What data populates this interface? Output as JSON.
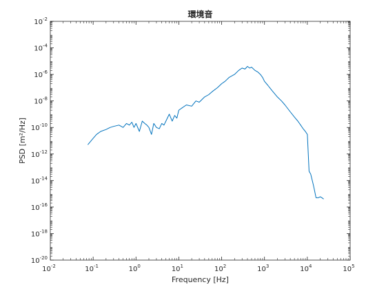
{
  "chart_data": {
    "type": "line",
    "title": "環境音",
    "xlabel": "Frequency [Hz]",
    "ylabel": "PSD [m²/Hz]",
    "x_scale": "log",
    "y_scale": "log",
    "xlim": [
      0.01,
      100000
    ],
    "ylim": [
      1e-20,
      0.01
    ],
    "grid": false,
    "x_ticks": [
      {
        "value": 0.01,
        "base": "10",
        "exp": "-2"
      },
      {
        "value": 0.1,
        "base": "10",
        "exp": "-1"
      },
      {
        "value": 1,
        "base": "10",
        "exp": "0"
      },
      {
        "value": 10,
        "base": "10",
        "exp": "1"
      },
      {
        "value": 100,
        "base": "10",
        "exp": "2"
      },
      {
        "value": 1000,
        "base": "10",
        "exp": "3"
      },
      {
        "value": 10000,
        "base": "10",
        "exp": "4"
      },
      {
        "value": 100000,
        "base": "10",
        "exp": "5"
      }
    ],
    "y_ticks": [
      {
        "value": 1e-20,
        "base": "10",
        "exp": "-20"
      },
      {
        "value": 1e-18,
        "base": "10",
        "exp": "-18"
      },
      {
        "value": 1e-16,
        "base": "10",
        "exp": "-16"
      },
      {
        "value": 1e-14,
        "base": "10",
        "exp": "-14"
      },
      {
        "value": 1e-12,
        "base": "10",
        "exp": "-12"
      },
      {
        "value": 1e-10,
        "base": "10",
        "exp": "-10"
      },
      {
        "value": 1e-08,
        "base": "10",
        "exp": "-8"
      },
      {
        "value": 1e-06,
        "base": "10",
        "exp": "-6"
      },
      {
        "value": 0.0001,
        "base": "10",
        "exp": "-4"
      },
      {
        "value": 0.01,
        "base": "10",
        "exp": "-2"
      }
    ],
    "series": [
      {
        "color": "#0072BD",
        "x": [
          0.075,
          0.1,
          0.12,
          0.15,
          0.2,
          0.25,
          0.3,
          0.4,
          0.5,
          0.6,
          0.7,
          0.8,
          0.9,
          1.0,
          1.2,
          1.4,
          1.6,
          1.8,
          2.0,
          2.3,
          2.6,
          3,
          3.5,
          4,
          4.5,
          5,
          6,
          7,
          8,
          9,
          10,
          12,
          15,
          20,
          25,
          30,
          40,
          50,
          60,
          80,
          100,
          120,
          150,
          200,
          250,
          300,
          350,
          400,
          450,
          500,
          600,
          700,
          800,
          900,
          1000,
          1200,
          1500,
          2000,
          2500,
          3000,
          4000,
          5000,
          6000,
          7000,
          8000,
          9000,
          10000,
          11000,
          12000,
          14000,
          16000,
          18000,
          20000,
          22000,
          24000
        ],
        "y": [
          5e-12,
          1.5e-11,
          3e-11,
          5e-11,
          7e-11,
          1e-10,
          1.2e-10,
          1.5e-10,
          1e-10,
          2e-10,
          1.5e-10,
          2.5e-10,
          1e-10,
          2e-10,
          5e-11,
          3e-10,
          2e-10,
          1.5e-10,
          1e-10,
          3e-11,
          2e-10,
          1e-10,
          8e-11,
          2e-10,
          1.5e-10,
          3e-10,
          1e-09,
          3e-10,
          8e-10,
          5e-10,
          2e-09,
          3e-09,
          5e-09,
          4e-09,
          1e-08,
          8e-09,
          2e-08,
          3e-08,
          5e-08,
          1e-07,
          2e-07,
          3e-07,
          6e-07,
          1e-06,
          2e-06,
          3e-06,
          2.5e-06,
          4e-06,
          3e-06,
          3.5e-06,
          2e-06,
          1.5e-06,
          1e-06,
          6e-07,
          3e-07,
          1.5e-07,
          6e-08,
          2e-08,
          1e-08,
          5e-09,
          1.5e-09,
          6e-10,
          3e-10,
          1.5e-10,
          8e-11,
          5e-11,
          3e-11,
          5e-14,
          3e-14,
          4e-15,
          5e-16,
          5e-16,
          6e-16,
          5e-16,
          4e-16
        ]
      }
    ]
  }
}
